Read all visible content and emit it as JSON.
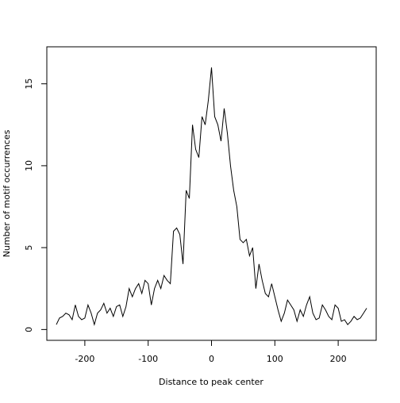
{
  "chart_data": {
    "type": "line",
    "x_label": "Distance to peak center",
    "y_label": "Number of motif occurrences",
    "x": [
      -245,
      -240,
      -235,
      -230,
      -225,
      -220,
      -215,
      -210,
      -205,
      -200,
      -195,
      -190,
      -185,
      -180,
      -175,
      -170,
      -165,
      -160,
      -155,
      -150,
      -145,
      -140,
      -135,
      -130,
      -125,
      -120,
      -115,
      -110,
      -105,
      -100,
      -95,
      -90,
      -85,
      -80,
      -75,
      -70,
      -65,
      -60,
      -55,
      -50,
      -45,
      -40,
      -35,
      -30,
      -25,
      -20,
      -15,
      -10,
      -5,
      0,
      5,
      10,
      15,
      20,
      25,
      30,
      35,
      40,
      45,
      50,
      55,
      60,
      65,
      70,
      75,
      80,
      85,
      90,
      95,
      100,
      105,
      110,
      115,
      120,
      125,
      130,
      135,
      140,
      145,
      150,
      155,
      160,
      165,
      170,
      175,
      180,
      185,
      190,
      195,
      200,
      205,
      210,
      215,
      220,
      225,
      230,
      235,
      240,
      245
    ],
    "series": [
      {
        "color": "#000000",
        "values": [
          0.3,
          0.7,
          0.8,
          1.0,
          0.9,
          0.6,
          1.5,
          0.8,
          0.6,
          0.7,
          1.5,
          1.0,
          0.3,
          1.0,
          1.2,
          1.6,
          1.0,
          1.3,
          0.8,
          1.4,
          1.5,
          0.8,
          1.4,
          2.5,
          2.0,
          2.5,
          2.8,
          2.2,
          3.0,
          2.8,
          1.5,
          2.5,
          3.0,
          2.5,
          3.3,
          3.0,
          2.8,
          6.0,
          6.2,
          5.8,
          4.0,
          8.5,
          8.0,
          12.5,
          11.0,
          10.5,
          13.0,
          12.5,
          14.0,
          16.0,
          13.0,
          12.5,
          11.5,
          13.5,
          12.0,
          10.0,
          8.5,
          7.5,
          5.5,
          5.3,
          5.5,
          4.5,
          5.0,
          2.5,
          4.0,
          3.0,
          2.2,
          2.0,
          2.8,
          2.0,
          1.2,
          0.5,
          1.0,
          1.8,
          1.5,
          1.2,
          0.5,
          1.2,
          0.8,
          1.5,
          2.0,
          1.0,
          0.6,
          0.7,
          1.5,
          1.2,
          0.8,
          0.6,
          1.5,
          1.3,
          0.5,
          0.6,
          0.3,
          0.5,
          0.8,
          0.6,
          0.7,
          1.0,
          1.3
        ]
      }
    ],
    "xlim": [
      -260,
      260
    ],
    "ylim": [
      -0.66,
      17.26
    ],
    "xticks": [
      -200,
      -100,
      0,
      100,
      200
    ],
    "yticks": [
      0,
      5,
      10,
      15
    ]
  }
}
